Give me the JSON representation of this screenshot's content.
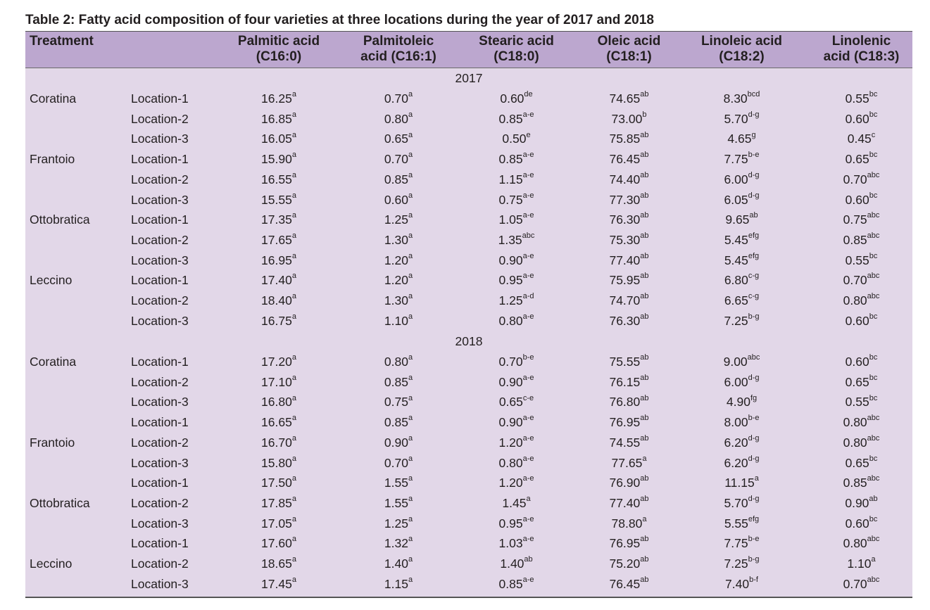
{
  "title": "Table 2: Fatty acid composition of four varieties at three locations during the year of 2017 and 2018",
  "headers": {
    "treatment": "Treatment",
    "palmitic": [
      "Palmitic acid",
      "(C16:0)"
    ],
    "palmitoleic": [
      "Palmitoleic",
      "acid (C16:1)"
    ],
    "stearic": [
      "Stearic acid",
      "(C18:0)"
    ],
    "oleic": [
      "Oleic acid",
      "(C18:1)"
    ],
    "linoleic": [
      "Linoleic acid",
      "(C18:2)"
    ],
    "linolenic": [
      "Linolenic",
      "acid (C18:3)"
    ]
  },
  "sections": [
    {
      "year": "2017",
      "rows": [
        {
          "variety": "Coratina",
          "location": "Location-1",
          "palmitic": [
            "16.25",
            "a"
          ],
          "palmitoleic": [
            "0.70",
            "a"
          ],
          "stearic": [
            "0.60",
            "de"
          ],
          "oleic": [
            "74.65",
            "ab"
          ],
          "linoleic": [
            "8.30",
            "bcd"
          ],
          "linolenic": [
            "0.55",
            "bc"
          ]
        },
        {
          "variety": "",
          "location": "Location-2",
          "palmitic": [
            "16.85",
            "a"
          ],
          "palmitoleic": [
            "0.80",
            "a"
          ],
          "stearic": [
            "0.85",
            "a-e"
          ],
          "oleic": [
            "73.00",
            "b"
          ],
          "linoleic": [
            "5.70",
            "d-g"
          ],
          "linolenic": [
            "0.60",
            "bc"
          ]
        },
        {
          "variety": "",
          "location": "Location-3",
          "palmitic": [
            "16.05",
            "a"
          ],
          "palmitoleic": [
            "0.65",
            "a"
          ],
          "stearic": [
            "0.50",
            "e"
          ],
          "oleic": [
            "75.85",
            "ab"
          ],
          "linoleic": [
            "4.65",
            "g"
          ],
          "linolenic": [
            "0.45",
            "c"
          ]
        },
        {
          "variety": "Frantoio",
          "location": "Location-1",
          "palmitic": [
            "15.90",
            "a"
          ],
          "palmitoleic": [
            "0.70",
            "a"
          ],
          "stearic": [
            "0.85",
            "a-e"
          ],
          "oleic": [
            "76.45",
            "ab"
          ],
          "linoleic": [
            "7.75",
            "b-e"
          ],
          "linolenic": [
            "0.65",
            "bc"
          ]
        },
        {
          "variety": "",
          "location": "Location-2",
          "palmitic": [
            "16.55",
            "a"
          ],
          "palmitoleic": [
            "0.85",
            "a"
          ],
          "stearic": [
            "1.15",
            "a-e"
          ],
          "oleic": [
            "74.40",
            "ab"
          ],
          "linoleic": [
            "6.00",
            "d-g"
          ],
          "linolenic": [
            "0.70",
            "abc"
          ]
        },
        {
          "variety": "",
          "location": "Location-3",
          "palmitic": [
            "15.55",
            "a"
          ],
          "palmitoleic": [
            "0.60",
            "a"
          ],
          "stearic": [
            "0.75",
            "a-e"
          ],
          "oleic": [
            "77.30",
            "ab"
          ],
          "linoleic": [
            "6.05",
            "d-g"
          ],
          "linolenic": [
            "0.60",
            "bc"
          ]
        },
        {
          "variety": "Ottobratica",
          "location": "Location-1",
          "palmitic": [
            "17.35",
            "a"
          ],
          "palmitoleic": [
            "1.25",
            "a"
          ],
          "stearic": [
            "1.05",
            "a-e"
          ],
          "oleic": [
            "76.30",
            "ab"
          ],
          "linoleic": [
            "9.65",
            "ab"
          ],
          "linolenic": [
            "0.75",
            "abc"
          ]
        },
        {
          "variety": "",
          "location": "Location-2",
          "palmitic": [
            "17.65",
            "a"
          ],
          "palmitoleic": [
            "1.30",
            "a"
          ],
          "stearic": [
            "1.35",
            "abc"
          ],
          "oleic": [
            "75.30",
            "ab"
          ],
          "linoleic": [
            "5.45",
            "efg"
          ],
          "linolenic": [
            "0.85",
            "abc"
          ]
        },
        {
          "variety": "",
          "location": "Location-3",
          "palmitic": [
            "16.95",
            "a"
          ],
          "palmitoleic": [
            "1.20",
            "a"
          ],
          "stearic": [
            "0.90",
            "a-e"
          ],
          "oleic": [
            "77.40",
            "ab"
          ],
          "linoleic": [
            "5.45",
            "efg"
          ],
          "linolenic": [
            "0.55",
            "bc"
          ]
        },
        {
          "variety": "Leccino",
          "location": "Location-1",
          "palmitic": [
            "17.40",
            "a"
          ],
          "palmitoleic": [
            "1.20",
            "a"
          ],
          "stearic": [
            "0.95",
            "a-e"
          ],
          "oleic": [
            "75.95",
            "ab"
          ],
          "linoleic": [
            "6.80",
            "c-g"
          ],
          "linolenic": [
            "0.70",
            "abc"
          ]
        },
        {
          "variety": "",
          "location": "Location-2",
          "palmitic": [
            "18.40",
            "a"
          ],
          "palmitoleic": [
            "1.30",
            "a"
          ],
          "stearic": [
            "1.25",
            "a-d"
          ],
          "oleic": [
            "74.70",
            "ab"
          ],
          "linoleic": [
            "6.65",
            "c-g"
          ],
          "linolenic": [
            "0.80",
            "abc"
          ]
        },
        {
          "variety": "",
          "location": "Location-3",
          "palmitic": [
            "16.75",
            "a"
          ],
          "palmitoleic": [
            "1.10",
            "a"
          ],
          "stearic": [
            "0.80",
            "a-e"
          ],
          "oleic": [
            "76.30",
            "ab"
          ],
          "linoleic": [
            "7.25",
            "b-g"
          ],
          "linolenic": [
            "0.60",
            "bc"
          ]
        }
      ]
    },
    {
      "year": "2018",
      "rows": [
        {
          "variety": "Coratina",
          "location": "Location-1",
          "palmitic": [
            "17.20",
            "a"
          ],
          "palmitoleic": [
            "0.80",
            "a"
          ],
          "stearic": [
            "0.70",
            "b-e"
          ],
          "oleic": [
            "75.55",
            "ab"
          ],
          "linoleic": [
            "9.00",
            "abc"
          ],
          "linolenic": [
            "0.60",
            "bc"
          ]
        },
        {
          "variety": "",
          "location": "Location-2",
          "palmitic": [
            "17.10",
            "a"
          ],
          "palmitoleic": [
            "0.85",
            "a"
          ],
          "stearic": [
            "0.90",
            "a-e"
          ],
          "oleic": [
            "76.15",
            "ab"
          ],
          "linoleic": [
            "6.00",
            "d-g"
          ],
          "linolenic": [
            "0.65",
            "bc"
          ]
        },
        {
          "variety": "",
          "location": "Location-3",
          "palmitic": [
            "16.80",
            "a"
          ],
          "palmitoleic": [
            "0.75",
            "a"
          ],
          "stearic": [
            "0.65",
            "c-e"
          ],
          "oleic": [
            "76.80",
            "ab"
          ],
          "linoleic": [
            "4.90",
            "fg"
          ],
          "linolenic": [
            "0.55",
            "bc"
          ]
        },
        {
          "variety": "",
          "location": "Location-1",
          "palmitic": [
            "16.65",
            "a"
          ],
          "palmitoleic": [
            "0.85",
            "a"
          ],
          "stearic": [
            "0.90",
            "a-e"
          ],
          "oleic": [
            "76.95",
            "ab"
          ],
          "linoleic": [
            "8.00",
            "b-e"
          ],
          "linolenic": [
            "0.80",
            "abc"
          ]
        },
        {
          "variety": "Frantoio",
          "location": "Location-2",
          "palmitic": [
            "16.70",
            "a"
          ],
          "palmitoleic": [
            "0.90",
            "a"
          ],
          "stearic": [
            "1.20",
            "a-e"
          ],
          "oleic": [
            "74.55",
            "ab"
          ],
          "linoleic": [
            "6.20",
            "d-g"
          ],
          "linolenic": [
            "0.80",
            "abc"
          ]
        },
        {
          "variety": "",
          "location": "Location-3",
          "palmitic": [
            "15.80",
            "a"
          ],
          "palmitoleic": [
            "0.70",
            "a"
          ],
          "stearic": [
            "0.80",
            "a-e"
          ],
          "oleic": [
            "77.65",
            "a"
          ],
          "linoleic": [
            "6.20",
            "d-g"
          ],
          "linolenic": [
            "0.65",
            "bc"
          ]
        },
        {
          "variety": "",
          "location": "Location-1",
          "palmitic": [
            "17.50",
            "a"
          ],
          "palmitoleic": [
            "1.55",
            "a"
          ],
          "stearic": [
            "1.20",
            "a-e"
          ],
          "oleic": [
            "76.90",
            "ab"
          ],
          "linoleic": [
            "11.15",
            "a"
          ],
          "linolenic": [
            "0.85",
            "abc"
          ]
        },
        {
          "variety": "Ottobratica",
          "location": "Location-2",
          "palmitic": [
            "17.85",
            "a"
          ],
          "palmitoleic": [
            "1.55",
            "a"
          ],
          "stearic": [
            "1.45",
            "a"
          ],
          "oleic": [
            "77.40",
            "ab"
          ],
          "linoleic": [
            "5.70",
            "d-g"
          ],
          "linolenic": [
            "0.90",
            "ab"
          ]
        },
        {
          "variety": "",
          "location": "Location-3",
          "palmitic": [
            "17.05",
            "a"
          ],
          "palmitoleic": [
            "1.25",
            "a"
          ],
          "stearic": [
            "0.95",
            "a-e"
          ],
          "oleic": [
            "78.80",
            "a"
          ],
          "linoleic": [
            "5.55",
            "efg"
          ],
          "linolenic": [
            "0.60",
            "bc"
          ]
        },
        {
          "variety": "",
          "location": "Location-1",
          "palmitic": [
            "17.60",
            "a"
          ],
          "palmitoleic": [
            "1.32",
            "a"
          ],
          "stearic": [
            "1.03",
            "a-e"
          ],
          "oleic": [
            "76.95",
            "ab"
          ],
          "linoleic": [
            "7.75",
            "b-e"
          ],
          "linolenic": [
            "0.80",
            "abc"
          ]
        },
        {
          "variety": "Leccino",
          "location": "Location-2",
          "palmitic": [
            "18.65",
            "a"
          ],
          "palmitoleic": [
            "1.40",
            "a"
          ],
          "stearic": [
            "1.40",
            "ab"
          ],
          "oleic": [
            "75.20",
            "ab"
          ],
          "linoleic": [
            "7.25",
            "b-g"
          ],
          "linolenic": [
            "1.10",
            "a"
          ]
        },
        {
          "variety": "",
          "location": "Location-3",
          "palmitic": [
            "17.45",
            "a"
          ],
          "palmitoleic": [
            "1.15",
            "a"
          ],
          "stearic": [
            "0.85",
            "a-e"
          ],
          "oleic": [
            "76.45",
            "ab"
          ],
          "linoleic": [
            "7.40",
            "b-f"
          ],
          "linolenic": [
            "0.70",
            "abc"
          ]
        }
      ]
    }
  ]
}
